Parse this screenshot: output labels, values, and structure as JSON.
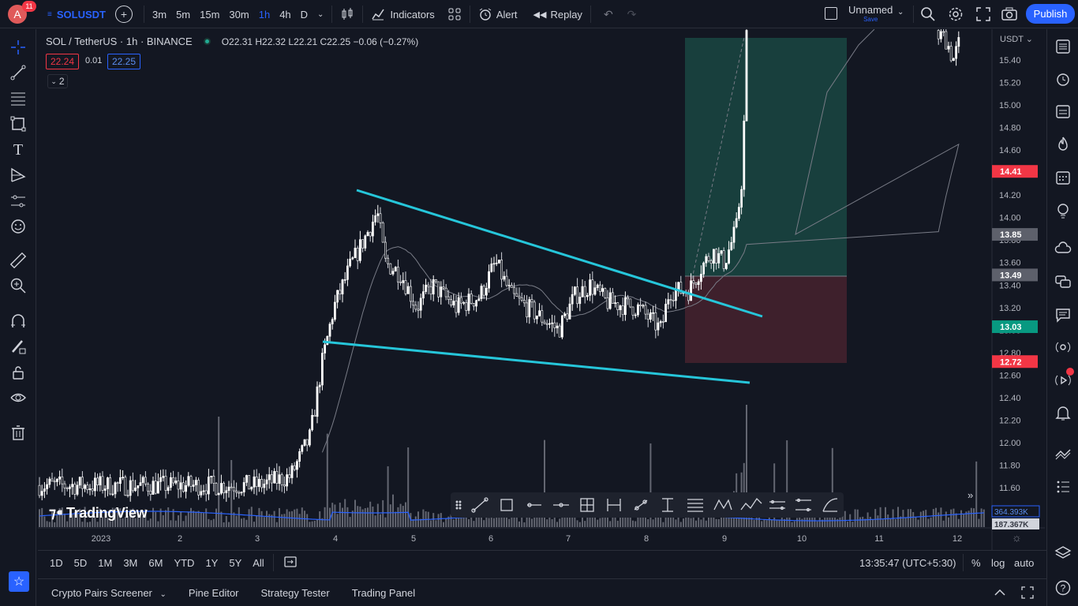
{
  "topbar": {
    "avatar_letter": "A",
    "notifications": "11",
    "symbol": "SOLUSDT",
    "intervals": [
      "3m",
      "5m",
      "15m",
      "30m",
      "1h",
      "4h",
      "D"
    ],
    "active_interval": "1h",
    "indicators_label": "Indicators",
    "alert_label": "Alert",
    "replay_label": "Replay",
    "layout_name": "Unnamed",
    "save_label": "Save",
    "publish_label": "Publish"
  },
  "legend": {
    "title": "SOL / TetherUS · 1h · BINANCE",
    "ohlc": "O22.31  H22.32  L22.21  C22.25  −0.06 (−0.27%)",
    "bid": "22.24",
    "spread": "0.01",
    "ask": "22.25",
    "collapsed_count": "2"
  },
  "price_axis": {
    "currency": "USDT",
    "ticks": [
      "15.40",
      "15.20",
      "15.00",
      "14.80",
      "14.60",
      "14.40",
      "14.20",
      "14.00",
      "13.80",
      "13.60",
      "13.40",
      "13.20",
      "13.00",
      "12.80",
      "12.60",
      "12.40",
      "12.20",
      "12.00",
      "11.80",
      "11.60"
    ],
    "labels": [
      {
        "text": "14.41",
        "color": "#f23645"
      },
      {
        "text": "13.85",
        "color": "#5d606b"
      },
      {
        "text": "13.49",
        "color": "#5d606b"
      },
      {
        "text": "13.03",
        "color": "#089981"
      },
      {
        "text": "12.72",
        "color": "#f23645"
      }
    ],
    "volume_labels": [
      {
        "text": "364.393K",
        "color": "#2962ff"
      },
      {
        "text": "187.367K",
        "color": "#363a45"
      }
    ]
  },
  "time_axis": {
    "ticks": [
      "2023",
      "2",
      "3",
      "4",
      "5",
      "6",
      "7",
      "8",
      "9",
      "10",
      "11",
      "12"
    ]
  },
  "watermark": "TradingView",
  "bottombar": {
    "ranges": [
      "1D",
      "5D",
      "1M",
      "3M",
      "6M",
      "YTD",
      "1Y",
      "5Y",
      "All"
    ],
    "clock": "13:35:47 (UTC+5:30)",
    "percent": "%",
    "log": "log",
    "auto": "auto"
  },
  "panels": [
    "Crypto Pairs Screener",
    "Pine Editor",
    "Strategy Tester",
    "Trading Panel"
  ],
  "colors": {
    "background": "#131722",
    "accent": "#2962ff",
    "trendline": "#26c6da",
    "profit_zone": "#1b4d47",
    "loss_zone": "#4a2330",
    "candle": "#ffffff",
    "volume_ma": "#2962ff"
  }
}
